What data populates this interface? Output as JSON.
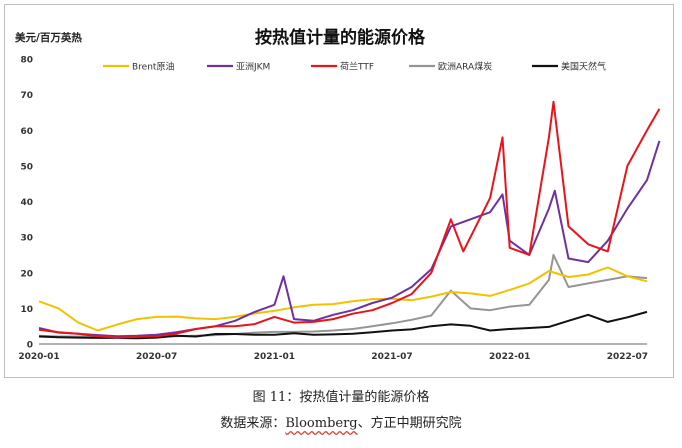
{
  "chart_data": {
    "type": "line",
    "title": "按热值计量的能源价格",
    "ylabel": "美元/百万英热",
    "xlabel": "",
    "ylim": [
      0,
      80
    ],
    "yticks": [
      0,
      10,
      20,
      30,
      40,
      50,
      60,
      70,
      80
    ],
    "xlim": [
      "2020-01",
      "2022-08"
    ],
    "xtick_labels": [
      "2020-01",
      "2020-07",
      "2021-01",
      "2021-07",
      "2022-01",
      "2022-07"
    ],
    "grid": false,
    "legend_position": "top",
    "series": [
      {
        "name": "Brent原油",
        "color": "#f2c200",
        "x": [
          "2020-01",
          "2020-02",
          "2020-03",
          "2020-04",
          "2020-05",
          "2020-06",
          "2020-07",
          "2020-08",
          "2020-09",
          "2020-10",
          "2020-11",
          "2020-12",
          "2021-01",
          "2021-02",
          "2021-03",
          "2021-04",
          "2021-05",
          "2021-06",
          "2021-07",
          "2021-08",
          "2021-09",
          "2021-10",
          "2021-11",
          "2021-12",
          "2022-01",
          "2022-02",
          "2022-03",
          "2022-04",
          "2022-05",
          "2022-06",
          "2022-07",
          "2022-08"
        ],
        "values": [
          12,
          10,
          6,
          3.8,
          5.5,
          7,
          7.6,
          7.7,
          7.2,
          7.0,
          7.6,
          8.6,
          9.3,
          10.3,
          11,
          11.2,
          12,
          12.6,
          12.7,
          12.3,
          13.3,
          14.6,
          14.2,
          13.5,
          15.2,
          17,
          20.5,
          18.8,
          19.5,
          21.5,
          19,
          17.6
        ]
      },
      {
        "name": "亚洲JKM",
        "color": "#7030a0",
        "x": [
          "2020-01",
          "2020-02",
          "2020-03",
          "2020-04",
          "2020-05",
          "2020-06",
          "2020-07",
          "2020-08",
          "2020-09",
          "2020-10",
          "2020-11",
          "2020-12",
          "2021-01",
          "2021-01-15",
          "2021-02",
          "2021-03",
          "2021-04",
          "2021-05",
          "2021-06",
          "2021-07",
          "2021-08",
          "2021-09",
          "2021-10",
          "2021-11",
          "2021-12",
          "2021-12-20",
          "2022-01",
          "2022-02",
          "2022-03",
          "2022-03-10",
          "2022-04",
          "2022-05",
          "2022-06",
          "2022-07",
          "2022-08",
          "2022-08-20"
        ],
        "values": [
          4.5,
          3.2,
          2.9,
          2.5,
          2.2,
          2.3,
          2.6,
          3.3,
          4.2,
          5,
          6.5,
          9,
          11,
          19,
          7,
          6.5,
          8.2,
          9.5,
          11.5,
          13,
          16,
          21,
          33,
          35,
          37,
          42,
          29,
          25,
          38,
          43,
          24,
          23,
          29,
          38,
          46,
          57
        ]
      },
      {
        "name": "荷兰TTF",
        "color": "#e8141a",
        "x": [
          "2020-01",
          "2020-02",
          "2020-03",
          "2020-04",
          "2020-05",
          "2020-06",
          "2020-07",
          "2020-08",
          "2020-09",
          "2020-10",
          "2020-11",
          "2020-12",
          "2021-01",
          "2021-02",
          "2021-03",
          "2021-04",
          "2021-05",
          "2021-06",
          "2021-07",
          "2021-08",
          "2021-09",
          "2021-10",
          "2021-10-20",
          "2021-11",
          "2021-12",
          "2021-12-20",
          "2022-01",
          "2022-02",
          "2022-03",
          "2022-03-08",
          "2022-04",
          "2022-05",
          "2022-06",
          "2022-07",
          "2022-08",
          "2022-08-20"
        ],
        "values": [
          4,
          3.3,
          2.9,
          2.2,
          1.8,
          2,
          2.2,
          2.9,
          4.2,
          5,
          5,
          5.6,
          7.6,
          6,
          6.2,
          7,
          8.5,
          9.5,
          11.5,
          14,
          20,
          35,
          26,
          30,
          41,
          58,
          27,
          25,
          58,
          68,
          33,
          28,
          26,
          50,
          60,
          66
        ]
      },
      {
        "name": "欧洲ARA煤炭",
        "color": "#959595",
        "x": [
          "2020-01",
          "2020-02",
          "2020-03",
          "2020-04",
          "2020-05",
          "2020-06",
          "2020-07",
          "2020-08",
          "2020-09",
          "2020-10",
          "2020-11",
          "2020-12",
          "2021-01",
          "2021-02",
          "2021-03",
          "2021-04",
          "2021-05",
          "2021-06",
          "2021-07",
          "2021-08",
          "2021-09",
          "2021-10",
          "2021-11",
          "2021-12",
          "2022-01",
          "2022-02",
          "2022-03",
          "2022-03-08",
          "2022-04",
          "2022-05",
          "2022-06",
          "2022-07",
          "2022-08"
        ],
        "values": [
          2.3,
          2.1,
          2.1,
          2,
          1.9,
          2,
          2.1,
          2.2,
          2.3,
          2.5,
          2.8,
          3.2,
          3.4,
          3.4,
          3.5,
          3.8,
          4.2,
          5,
          5.8,
          6.8,
          8,
          15,
          10,
          9.5,
          10.5,
          11,
          18,
          25,
          16,
          17,
          18,
          19,
          18.5
        ]
      },
      {
        "name": "美国天然气",
        "color": "#111111",
        "x": [
          "2020-01",
          "2020-02",
          "2020-03",
          "2020-04",
          "2020-05",
          "2020-06",
          "2020-07",
          "2020-08",
          "2020-09",
          "2020-10",
          "2020-11",
          "2020-12",
          "2021-01",
          "2021-02",
          "2021-03",
          "2021-04",
          "2021-05",
          "2021-06",
          "2021-07",
          "2021-08",
          "2021-09",
          "2021-10",
          "2021-11",
          "2021-12",
          "2022-01",
          "2022-02",
          "2022-03",
          "2022-04",
          "2022-05",
          "2022-06",
          "2022-07",
          "2022-08"
        ],
        "values": [
          2.1,
          1.9,
          1.8,
          1.7,
          1.7,
          1.6,
          1.8,
          2.3,
          2.1,
          2.8,
          2.8,
          2.6,
          2.6,
          3,
          2.6,
          2.7,
          2.9,
          3.3,
          3.8,
          4.1,
          5,
          5.5,
          5.1,
          3.8,
          4.2,
          4.5,
          4.8,
          6.5,
          8.2,
          6.2,
          7.5,
          9
        ]
      }
    ]
  },
  "captions": {
    "figure": "图 11：按热值计量的能源价格",
    "source_prefix": "数据来源：",
    "source_link": "Bloomberg",
    "source_suffix": "、方正中期研究院"
  }
}
